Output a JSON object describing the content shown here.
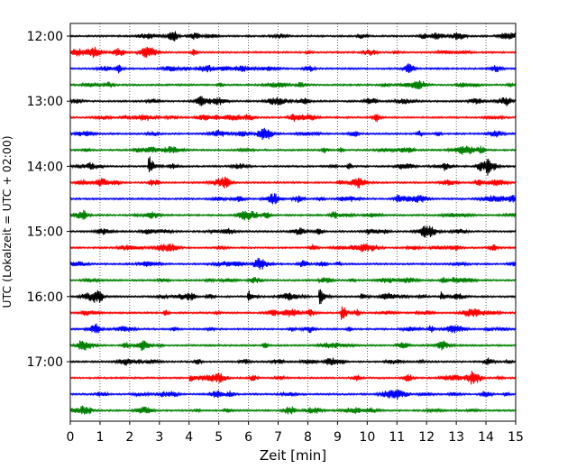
{
  "chart_data": {
    "type": "line",
    "title": "",
    "xlabel": "Zeit  [min]",
    "ylabel": "UTC (Lokalzeit = UTC + 02:00)",
    "xlim": [
      0,
      15
    ],
    "x_ticks": [
      0,
      1,
      2,
      3,
      4,
      5,
      6,
      7,
      8,
      9,
      10,
      11,
      12,
      13,
      14,
      15
    ],
    "x_tick_labels": [
      "0",
      "1",
      "2",
      "3",
      "4",
      "5",
      "6",
      "7",
      "8",
      "9",
      "10",
      "11",
      "12",
      "13",
      "14",
      "15"
    ],
    "y_tick_labels": [
      "12:00",
      "13:00",
      "14:00",
      "15:00",
      "16:00",
      "17:00"
    ],
    "trace_interval_minutes": 15,
    "first_trace_time": "12:00",
    "trace_colors": [
      "#000000",
      "#ff0000",
      "#0000ff",
      "#008000"
    ],
    "vertical_grid": "dotted",
    "traces": [
      {
        "start": "12:00",
        "color": "#000000"
      },
      {
        "start": "12:15",
        "color": "#ff0000"
      },
      {
        "start": "12:30",
        "color": "#0000ff"
      },
      {
        "start": "12:45",
        "color": "#008000"
      },
      {
        "start": "13:00",
        "color": "#000000"
      },
      {
        "start": "13:15",
        "color": "#ff0000"
      },
      {
        "start": "13:30",
        "color": "#0000ff"
      },
      {
        "start": "13:45",
        "color": "#008000"
      },
      {
        "start": "14:00",
        "color": "#000000",
        "events": [
          {
            "t": 2.65,
            "amp": 14
          },
          {
            "t": 12.6,
            "amp": 5
          },
          {
            "t": 14.05,
            "amp": 4
          }
        ]
      },
      {
        "start": "14:15",
        "color": "#ff0000"
      },
      {
        "start": "14:30",
        "color": "#0000ff"
      },
      {
        "start": "14:45",
        "color": "#008000"
      },
      {
        "start": "15:00",
        "color": "#000000"
      },
      {
        "start": "15:15",
        "color": "#ff0000"
      },
      {
        "start": "15:30",
        "color": "#0000ff"
      },
      {
        "start": "15:45",
        "color": "#008000"
      },
      {
        "start": "16:00",
        "color": "#000000",
        "events": [
          {
            "t": 6.0,
            "amp": 7
          },
          {
            "t": 8.4,
            "amp": 11
          },
          {
            "t": 9.8,
            "amp": 5
          },
          {
            "t": 12.5,
            "amp": 6
          }
        ]
      },
      {
        "start": "16:15",
        "color": "#ff0000",
        "events": [
          {
            "t": 9.15,
            "amp": 12
          }
        ]
      },
      {
        "start": "16:30",
        "color": "#0000ff"
      },
      {
        "start": "16:45",
        "color": "#008000"
      },
      {
        "start": "17:00",
        "color": "#000000"
      },
      {
        "start": "17:15",
        "color": "#ff0000",
        "events": [
          {
            "t": 4.05,
            "amp": 5
          }
        ]
      },
      {
        "start": "17:30",
        "color": "#0000ff"
      },
      {
        "start": "17:45",
        "color": "#008000"
      }
    ]
  }
}
